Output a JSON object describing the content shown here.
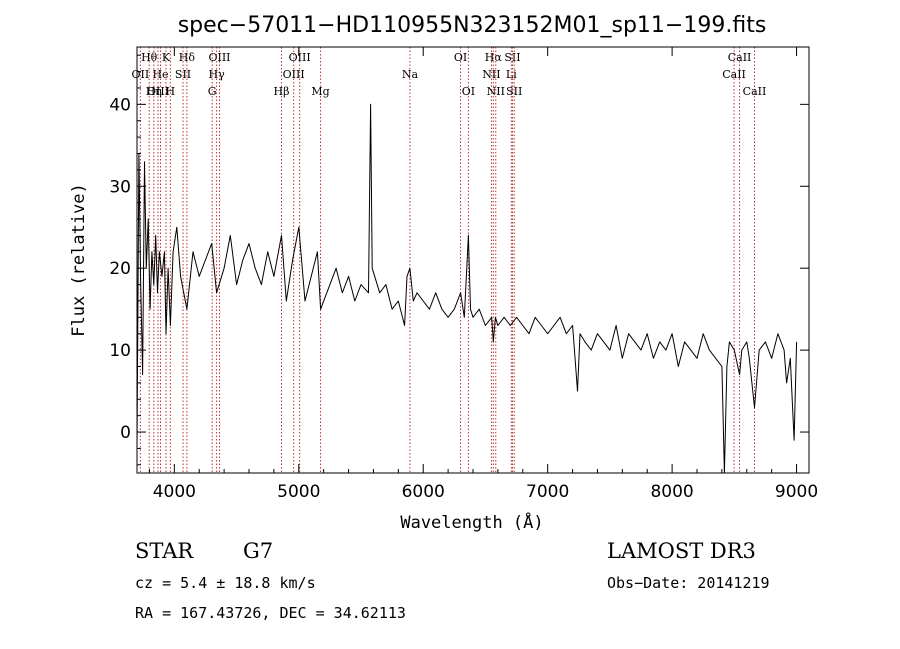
{
  "chart_data": {
    "type": "line",
    "title": "spec−57011−HD110955N323152M01_sp11−199.fits",
    "xlabel": "Wavelength (Å)",
    "ylabel": "Flux (relative)",
    "xlim": [
      3700,
      9100
    ],
    "ylim": [
      -5,
      47
    ],
    "xticks": [
      4000,
      5000,
      6000,
      7000,
      8000,
      9000
    ],
    "yticks": [
      0,
      10,
      20,
      30,
      40
    ],
    "line_color": "#000000",
    "marker_color": "#c03030",
    "spectrum": {
      "x": [
        3700,
        3715,
        3730,
        3745,
        3760,
        3775,
        3790,
        3805,
        3820,
        3835,
        3850,
        3865,
        3880,
        3900,
        3920,
        3933,
        3950,
        3968,
        3990,
        4020,
        4050,
        4101,
        4150,
        4200,
        4250,
        4300,
        4340,
        4400,
        4450,
        4500,
        4550,
        4600,
        4650,
        4700,
        4750,
        4800,
        4861,
        4900,
        4950,
        5000,
        5050,
        5100,
        5150,
        5175,
        5250,
        5300,
        5350,
        5400,
        5450,
        5500,
        5560,
        5577,
        5590,
        5650,
        5700,
        5750,
        5800,
        5850,
        5870,
        5893,
        5920,
        5950,
        6000,
        6050,
        6100,
        6150,
        6200,
        6250,
        6300,
        6330,
        6363,
        6380,
        6400,
        6450,
        6500,
        6550,
        6563,
        6580,
        6600,
        6650,
        6700,
        6750,
        6800,
        6850,
        6900,
        6950,
        7000,
        7050,
        7100,
        7150,
        7200,
        7240,
        7260,
        7300,
        7350,
        7400,
        7450,
        7500,
        7550,
        7600,
        7650,
        7700,
        7750,
        7800,
        7850,
        7900,
        7950,
        8000,
        8050,
        8100,
        8150,
        8200,
        8250,
        8300,
        8350,
        8400,
        8420,
        8440,
        8460,
        8500,
        8542,
        8560,
        8600,
        8620,
        8662,
        8700,
        8750,
        8800,
        8850,
        8900,
        8920,
        8950,
        8980,
        9000
      ],
      "y": [
        -2,
        34,
        18,
        7,
        33,
        20,
        26,
        15,
        22,
        18,
        24,
        17,
        22,
        19,
        22,
        12,
        20,
        13,
        22,
        25,
        19,
        15,
        22,
        19,
        21,
        23,
        17,
        20,
        24,
        18,
        21,
        23,
        20,
        18,
        22,
        19,
        24,
        16,
        21,
        25,
        16,
        19,
        22,
        15,
        18,
        20,
        17,
        19,
        16,
        18,
        17,
        40,
        20,
        17,
        18,
        15,
        16,
        13,
        19,
        20,
        16,
        17,
        16,
        15,
        17,
        15,
        14,
        15,
        17,
        14,
        24,
        15,
        14,
        15,
        13,
        14,
        11,
        14,
        13,
        14,
        13,
        14,
        13,
        12,
        14,
        13,
        12,
        13,
        14,
        12,
        13,
        5,
        12,
        11,
        10,
        12,
        11,
        10,
        13,
        9,
        12,
        11,
        10,
        12,
        9,
        11,
        10,
        12,
        8,
        11,
        10,
        9,
        12,
        10,
        9,
        8,
        -5,
        8,
        11,
        10,
        7,
        10,
        11,
        9,
        3,
        10,
        11,
        9,
        12,
        10,
        6,
        9,
        -1,
        11
      ]
    },
    "spectral_lines": [
      {
        "label": "Hθ",
        "wavelength": 3798,
        "row": 1
      },
      {
        "label": "OII",
        "wavelength": 3727,
        "row": 2
      },
      {
        "label": "OIII",
        "wavelength": 3869,
        "row": 3
      },
      {
        "label": "He",
        "wavelength": 3889,
        "row": 2
      },
      {
        "label": "Hη",
        "wavelength": 3835,
        "row": 3
      },
      {
        "label": "K",
        "wavelength": 3933,
        "row": 1
      },
      {
        "label": "H",
        "wavelength": 3968,
        "row": 3
      },
      {
        "label": "SII",
        "wavelength": 4070,
        "row": 2
      },
      {
        "label": "Hδ",
        "wavelength": 4101,
        "row": 1
      },
      {
        "label": "OIII",
        "wavelength": 4363,
        "row": 1
      },
      {
        "label": "Hγ",
        "wavelength": 4340,
        "row": 2
      },
      {
        "label": "G",
        "wavelength": 4304,
        "row": 3
      },
      {
        "label": "Hβ",
        "wavelength": 4861,
        "row": 3
      },
      {
        "label": "OIII",
        "wavelength": 5007,
        "row": 1
      },
      {
        "label": "OIII",
        "wavelength": 4959,
        "row": 2
      },
      {
        "label": "Mg",
        "wavelength": 5175,
        "row": 3
      },
      {
        "label": "Na",
        "wavelength": 5893,
        "row": 2
      },
      {
        "label": "OI",
        "wavelength": 6300,
        "row": 1
      },
      {
        "label": "OI",
        "wavelength": 6363,
        "row": 3
      },
      {
        "label": "Hα",
        "wavelength": 6563,
        "row": 1
      },
      {
        "label": "NII",
        "wavelength": 6548,
        "row": 2
      },
      {
        "label": "NII",
        "wavelength": 6583,
        "row": 3
      },
      {
        "label": "SII",
        "wavelength": 6717,
        "row": 1
      },
      {
        "label": "Li",
        "wavelength": 6708,
        "row": 2
      },
      {
        "label": "SII",
        "wavelength": 6731,
        "row": 3
      },
      {
        "label": "CaII",
        "wavelength": 8542,
        "row": 1
      },
      {
        "label": "CaII",
        "wavelength": 8498,
        "row": 2
      },
      {
        "label": "CaII",
        "wavelength": 8662,
        "row": 3
      }
    ]
  },
  "footer": {
    "class_label": "STAR",
    "subclass": "G7",
    "survey": "LAMOST DR3",
    "redshift": "cz = 5.4 ± 18.8 km/s",
    "obs_date": "Obs−Date: 20141219",
    "coords": "RA = 167.43726, DEC =  34.62113"
  }
}
